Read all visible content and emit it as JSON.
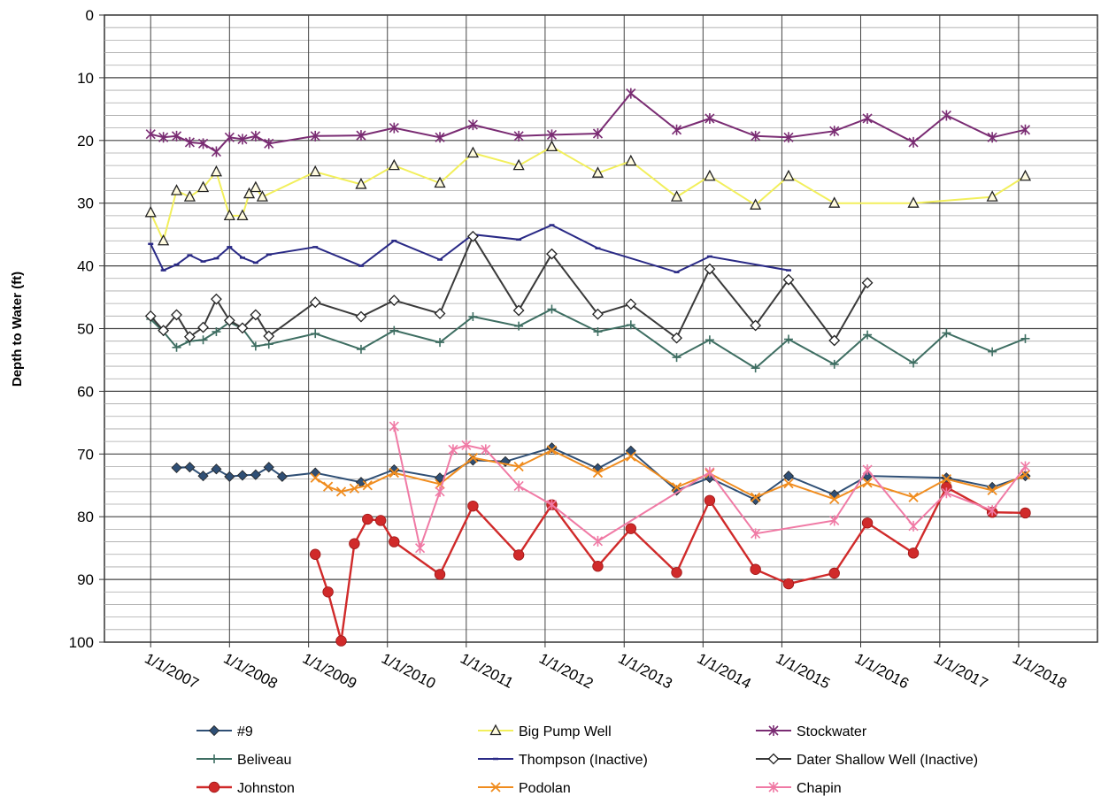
{
  "chart_data": {
    "type": "line",
    "title": "",
    "xlabel": "",
    "ylabel": "Depth to Water (ft)",
    "ylim": [
      0,
      100
    ],
    "y_inverted": true,
    "y_ticks": [
      "0",
      "10",
      "20",
      "30",
      "40",
      "50",
      "60",
      "70",
      "80",
      "90",
      "100"
    ],
    "xlim": [
      "2006-06-01",
      "2019-01-01"
    ],
    "x_ticks": [
      {
        "date": "2007-01-01",
        "label": "1/1/2007"
      },
      {
        "date": "2008-01-01",
        "label": "1/1/2008"
      },
      {
        "date": "2009-01-01",
        "label": "1/1/2009"
      },
      {
        "date": "2010-01-01",
        "label": "1/1/2010"
      },
      {
        "date": "2011-01-01",
        "label": "1/1/2011"
      },
      {
        "date": "2012-01-01",
        "label": "1/1/2012"
      },
      {
        "date": "2013-01-01",
        "label": "1/1/2013"
      },
      {
        "date": "2014-01-01",
        "label": "1/1/2014"
      },
      {
        "date": "2015-01-01",
        "label": "1/1/2015"
      },
      {
        "date": "2016-01-01",
        "label": "1/1/2016"
      },
      {
        "date": "2017-01-01",
        "label": "1/1/2017"
      },
      {
        "date": "2018-01-01",
        "label": "1/1/2018"
      }
    ],
    "grid": true,
    "legend_position": "bottom",
    "series": [
      {
        "name": "#9",
        "color": "#2f4f75",
        "marker": "diamond",
        "points": [
          [
            "2007-05-01",
            72.2
          ],
          [
            "2007-07-01",
            72.1
          ],
          [
            "2007-09-01",
            73.5
          ],
          [
            "2007-11-01",
            72.4
          ],
          [
            "2008-01-01",
            73.6
          ],
          [
            "2008-03-01",
            73.4
          ],
          [
            "2008-05-01",
            73.3
          ],
          [
            "2008-07-01",
            72.1
          ],
          [
            "2008-09-01",
            73.6
          ],
          [
            "2009-02-01",
            73.0
          ],
          [
            "2009-09-01",
            74.5
          ],
          [
            "2010-02-01",
            72.5
          ],
          [
            "2010-09-01",
            73.8
          ],
          [
            "2011-02-01",
            71.0
          ],
          [
            "2011-07-01",
            71.2
          ],
          [
            "2012-02-01",
            69.0
          ],
          [
            "2012-09-01",
            72.3
          ],
          [
            "2013-02-01",
            69.5
          ],
          [
            "2013-09-01",
            75.8
          ],
          [
            "2014-02-01",
            73.8
          ],
          [
            "2014-09-01",
            77.3
          ],
          [
            "2015-02-01",
            73.5
          ],
          [
            "2015-09-01",
            76.5
          ],
          [
            "2016-02-01",
            73.5
          ],
          [
            "2017-02-01",
            73.8
          ],
          [
            "2017-09-01",
            75.3
          ],
          [
            "2018-02-01",
            73.5
          ]
        ]
      },
      {
        "name": "Big Pump Well",
        "color": "#f2ef5c",
        "marker": "triangle",
        "points": [
          [
            "2007-01-01",
            31.5
          ],
          [
            "2007-03-01",
            36.0
          ],
          [
            "2007-05-01",
            28.0
          ],
          [
            "2007-07-01",
            29.0
          ],
          [
            "2007-09-01",
            27.5
          ],
          [
            "2007-11-01",
            25.0
          ],
          [
            "2008-01-01",
            32.0
          ],
          [
            "2008-03-01",
            32.0
          ],
          [
            "2008-04-01",
            28.5
          ],
          [
            "2008-05-01",
            27.5
          ],
          [
            "2008-06-01",
            29.0
          ],
          [
            "2009-02-01",
            25.0
          ],
          [
            "2009-09-01",
            27.0
          ],
          [
            "2010-02-01",
            24.0
          ],
          [
            "2010-09-01",
            26.8
          ],
          [
            "2011-02-01",
            22.0
          ],
          [
            "2011-09-01",
            24.0
          ],
          [
            "2012-02-01",
            21.0
          ],
          [
            "2012-09-01",
            25.2
          ],
          [
            "2013-02-01",
            23.3
          ],
          [
            "2013-09-01",
            29.0
          ],
          [
            "2014-02-01",
            25.7
          ],
          [
            "2014-09-01",
            30.3
          ],
          [
            "2015-02-01",
            25.7
          ],
          [
            "2015-09-01",
            30.0
          ],
          [
            "2016-09-01",
            30.0
          ],
          [
            "2017-09-01",
            29.0
          ],
          [
            "2018-02-01",
            25.7
          ]
        ]
      },
      {
        "name": "Stockwater",
        "color": "#7a2c73",
        "marker": "star",
        "points": [
          [
            "2007-01-01",
            19.0
          ],
          [
            "2007-03-01",
            19.5
          ],
          [
            "2007-05-01",
            19.3
          ],
          [
            "2007-07-01",
            20.3
          ],
          [
            "2007-09-01",
            20.5
          ],
          [
            "2007-11-01",
            21.8
          ],
          [
            "2008-01-01",
            19.5
          ],
          [
            "2008-03-01",
            19.8
          ],
          [
            "2008-05-01",
            19.3
          ],
          [
            "2008-07-01",
            20.5
          ],
          [
            "2009-02-01",
            19.3
          ],
          [
            "2009-09-01",
            19.2
          ],
          [
            "2010-02-01",
            18.0
          ],
          [
            "2010-09-01",
            19.5
          ],
          [
            "2011-02-01",
            17.5
          ],
          [
            "2011-09-01",
            19.3
          ],
          [
            "2012-02-01",
            19.1
          ],
          [
            "2012-09-01",
            18.9
          ],
          [
            "2013-02-01",
            12.5
          ],
          [
            "2013-09-01",
            18.3
          ],
          [
            "2014-02-01",
            16.5
          ],
          [
            "2014-09-01",
            19.3
          ],
          [
            "2015-02-01",
            19.5
          ],
          [
            "2015-09-01",
            18.5
          ],
          [
            "2016-02-01",
            16.5
          ],
          [
            "2016-09-01",
            20.3
          ],
          [
            "2017-02-01",
            16.0
          ],
          [
            "2017-09-01",
            19.5
          ],
          [
            "2018-02-01",
            18.3
          ]
        ]
      },
      {
        "name": "Beliveau",
        "color": "#3e6e62",
        "marker": "plus",
        "points": [
          [
            "2007-01-01",
            48.5
          ],
          [
            "2007-03-01",
            50.5
          ],
          [
            "2007-05-01",
            53.0
          ],
          [
            "2007-07-01",
            52.0
          ],
          [
            "2007-09-01",
            51.8
          ],
          [
            "2007-11-01",
            50.5
          ],
          [
            "2008-01-01",
            49.0
          ],
          [
            "2008-03-01",
            50.0
          ],
          [
            "2008-05-01",
            52.8
          ],
          [
            "2008-07-01",
            52.5
          ],
          [
            "2009-02-01",
            50.8
          ],
          [
            "2009-09-01",
            53.3
          ],
          [
            "2010-02-01",
            50.3
          ],
          [
            "2010-09-01",
            52.2
          ],
          [
            "2011-02-01",
            48.1
          ],
          [
            "2011-09-01",
            49.6
          ],
          [
            "2012-02-01",
            46.9
          ],
          [
            "2012-09-01",
            50.5
          ],
          [
            "2013-02-01",
            49.4
          ],
          [
            "2013-09-01",
            54.6
          ],
          [
            "2014-02-01",
            51.8
          ],
          [
            "2014-09-01",
            56.3
          ],
          [
            "2015-02-01",
            51.7
          ],
          [
            "2015-09-01",
            55.7
          ],
          [
            "2016-02-01",
            51.0
          ],
          [
            "2016-09-01",
            55.5
          ],
          [
            "2017-02-01",
            50.7
          ],
          [
            "2017-09-01",
            53.7
          ],
          [
            "2018-02-01",
            51.6
          ]
        ]
      },
      {
        "name": "Thompson (Inactive)",
        "color": "#2a2a86",
        "marker": "dash",
        "points": [
          [
            "2007-01-01",
            36.5
          ],
          [
            "2007-03-01",
            40.7
          ],
          [
            "2007-05-01",
            39.8
          ],
          [
            "2007-07-01",
            38.3
          ],
          [
            "2007-09-01",
            39.3
          ],
          [
            "2007-11-01",
            38.8
          ],
          [
            "2008-01-01",
            37.0
          ],
          [
            "2008-03-01",
            38.7
          ],
          [
            "2008-05-01",
            39.5
          ],
          [
            "2008-07-01",
            38.2
          ],
          [
            "2009-02-01",
            37.0
          ],
          [
            "2009-09-01",
            40.0
          ],
          [
            "2010-02-01",
            36.0
          ],
          [
            "2010-09-01",
            39.0
          ],
          [
            "2011-02-01",
            35.0
          ],
          [
            "2011-09-01",
            35.8
          ],
          [
            "2012-02-01",
            33.5
          ],
          [
            "2012-09-01",
            37.2
          ],
          [
            "2013-09-01",
            41.0
          ],
          [
            "2014-02-01",
            38.5
          ],
          [
            "2015-02-01",
            40.7
          ]
        ]
      },
      {
        "name": "Dater Shallow Well (Inactive)",
        "color": "#3a3a3a",
        "marker": "diamond-open",
        "points": [
          [
            "2007-01-01",
            48.0
          ],
          [
            "2007-03-01",
            50.3
          ],
          [
            "2007-05-01",
            47.8
          ],
          [
            "2007-07-01",
            51.3
          ],
          [
            "2007-09-01",
            49.8
          ],
          [
            "2007-11-01",
            45.3
          ],
          [
            "2008-01-01",
            48.7
          ],
          [
            "2008-03-01",
            49.9
          ],
          [
            "2008-05-01",
            47.8
          ],
          [
            "2008-07-01",
            51.2
          ],
          [
            "2009-02-01",
            45.8
          ],
          [
            "2009-09-01",
            48.1
          ],
          [
            "2010-02-01",
            45.5
          ],
          [
            "2010-09-01",
            47.6
          ],
          [
            "2011-02-01",
            35.3
          ],
          [
            "2011-09-01",
            47.1
          ],
          [
            "2012-02-01",
            38.1
          ],
          [
            "2012-09-01",
            47.7
          ],
          [
            "2013-02-01",
            46.1
          ],
          [
            "2013-09-01",
            51.5
          ],
          [
            "2014-02-01",
            40.5
          ],
          [
            "2014-09-01",
            49.5
          ],
          [
            "2015-02-01",
            42.2
          ],
          [
            "2015-09-01",
            51.9
          ],
          [
            "2016-02-01",
            42.7
          ]
        ]
      },
      {
        "name": "Johnston",
        "color": "#d02a2a",
        "marker": "circle",
        "points": [
          [
            "2009-02-01",
            86.0
          ],
          [
            "2009-04-01",
            92.0
          ],
          [
            "2009-06-01",
            99.8
          ],
          [
            "2009-08-01",
            84.3
          ],
          [
            "2009-10-01",
            80.4
          ],
          [
            "2009-12-01",
            80.6
          ],
          [
            "2010-02-01",
            84.0
          ],
          [
            "2010-09-01",
            89.2
          ],
          [
            "2011-02-01",
            78.3
          ],
          [
            "2011-09-01",
            86.1
          ],
          [
            "2012-02-01",
            78.1
          ],
          [
            "2012-09-01",
            87.9
          ],
          [
            "2013-02-01",
            81.9
          ],
          [
            "2013-09-01",
            88.9
          ],
          [
            "2014-02-01",
            77.4
          ],
          [
            "2014-09-01",
            88.4
          ],
          [
            "2015-02-01",
            90.7
          ],
          [
            "2015-09-01",
            89.0
          ],
          [
            "2016-02-01",
            81.0
          ],
          [
            "2016-09-01",
            85.8
          ],
          [
            "2017-02-01",
            75.3
          ],
          [
            "2017-09-01",
            79.3
          ],
          [
            "2018-02-01",
            79.4
          ]
        ]
      },
      {
        "name": "Podolan",
        "color": "#f08c1e",
        "marker": "x",
        "points": [
          [
            "2009-02-01",
            73.8
          ],
          [
            "2009-04-01",
            75.2
          ],
          [
            "2009-06-01",
            76.0
          ],
          [
            "2009-08-01",
            75.5
          ],
          [
            "2009-10-01",
            75.0
          ],
          [
            "2010-02-01",
            73.0
          ],
          [
            "2010-09-01",
            74.8
          ],
          [
            "2011-02-01",
            70.6
          ],
          [
            "2011-09-01",
            72.0
          ],
          [
            "2012-02-01",
            69.4
          ],
          [
            "2012-09-01",
            73.0
          ],
          [
            "2013-02-01",
            70.4
          ],
          [
            "2013-09-01",
            75.3
          ],
          [
            "2014-02-01",
            73.1
          ],
          [
            "2014-09-01",
            76.9
          ],
          [
            "2015-02-01",
            74.7
          ],
          [
            "2015-09-01",
            77.2
          ],
          [
            "2016-02-01",
            74.6
          ],
          [
            "2016-09-01",
            76.9
          ],
          [
            "2017-02-01",
            74.0
          ],
          [
            "2017-09-01",
            75.8
          ],
          [
            "2018-02-01",
            73.3
          ]
        ]
      },
      {
        "name": "Chapin",
        "color": "#f07aa5",
        "marker": "star",
        "points": [
          [
            "2010-02-01",
            65.6
          ],
          [
            "2010-06-01",
            85.0
          ],
          [
            "2010-09-01",
            76.0
          ],
          [
            "2010-11-01",
            69.3
          ],
          [
            "2011-01-01",
            68.6
          ],
          [
            "2011-04-01",
            69.3
          ],
          [
            "2011-09-01",
            75.1
          ],
          [
            "2012-02-01",
            78.1
          ],
          [
            "2012-09-01",
            83.9
          ],
          [
            "2014-02-01",
            72.9
          ],
          [
            "2014-09-01",
            82.7
          ],
          [
            "2015-09-01",
            80.6
          ],
          [
            "2016-02-01",
            72.5
          ],
          [
            "2016-09-01",
            81.5
          ],
          [
            "2017-02-01",
            76.2
          ],
          [
            "2017-09-01",
            79.0
          ],
          [
            "2018-02-01",
            72.0
          ]
        ]
      }
    ]
  }
}
